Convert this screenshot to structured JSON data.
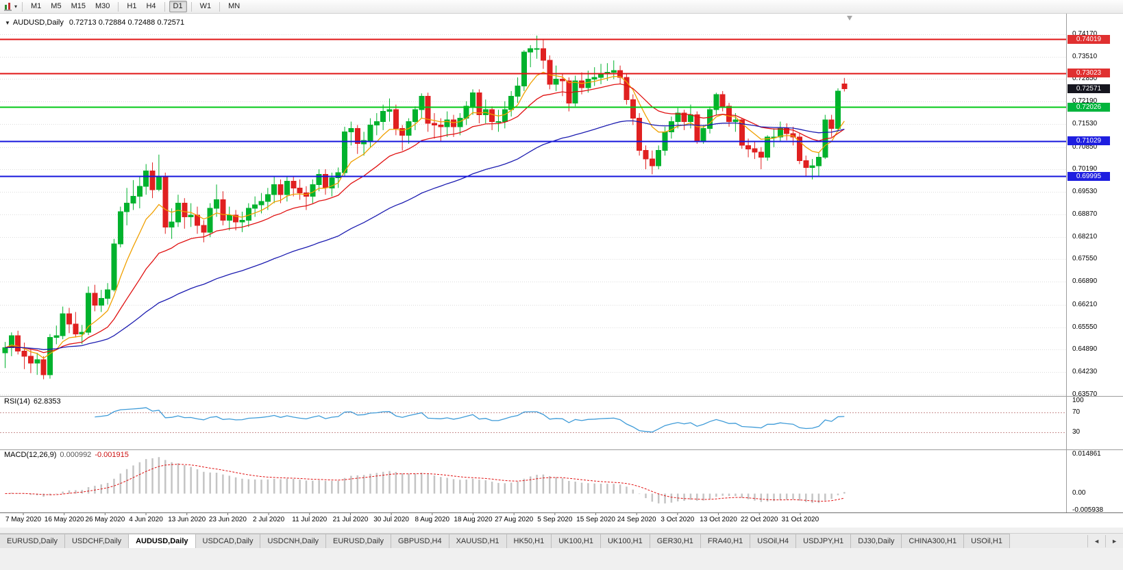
{
  "toolbar": {
    "timeframe_groups": [
      [
        "M1",
        "M5",
        "M15",
        "M30"
      ],
      [
        "H1",
        "H4"
      ],
      [
        "D1"
      ],
      [
        "W1"
      ],
      [
        "MN"
      ]
    ],
    "active_timeframe": "D1",
    "caret": "▾"
  },
  "chart": {
    "collapse_icon": "▼",
    "symbol_period": "AUDUSD,Daily",
    "ohlc": "0.72713 0.72884 0.72488 0.72571"
  },
  "price_axis": {
    "labels": [
      "0.74170",
      "0.73510",
      "0.72850",
      "0.72190",
      "0.71530",
      "0.70850",
      "0.70190",
      "0.69530",
      "0.68870",
      "0.68210",
      "0.67550",
      "0.66890",
      "0.66210",
      "0.65550",
      "0.64890",
      "0.64230",
      "0.63570"
    ]
  },
  "lines": [
    {
      "price": 0.74019,
      "label": "0.74019",
      "color": "#e01414",
      "badge": "#e03030",
      "width": 2,
      "current": false
    },
    {
      "price": 0.73023,
      "label": "0.73023",
      "color": "#e01414",
      "badge": "#e03030",
      "width": 2,
      "current": false
    },
    {
      "price": 0.72571,
      "label": "0.72571",
      "color": "#16161f",
      "badge": "#16161f",
      "width": 1,
      "current": true
    },
    {
      "price": 0.72026,
      "label": "0.72026",
      "color": "#00c814",
      "badge": "#00b43c",
      "width": 2,
      "current": false
    },
    {
      "price": 0.71029,
      "label": "0.71029",
      "color": "#1414dc",
      "badge": "#1e1ee0",
      "width": 2,
      "current": false
    },
    {
      "price": 0.69995,
      "label": "0.69995",
      "color": "#1414dc",
      "badge": "#1e1ee0",
      "width": 2,
      "current": false
    }
  ],
  "date_axis": {
    "labels": [
      "7 May 2020",
      "16 May 2020",
      "26 May 2020",
      "4 Jun 2020",
      "13 Jun 2020",
      "23 Jun 2020",
      "2 Jul 2020",
      "11 Jul 2020",
      "21 Jul 2020",
      "30 Jul 2020",
      "8 Aug 2020",
      "18 Aug 2020",
      "27 Aug 2020",
      "5 Sep 2020",
      "15 Sep 2020",
      "24 Sep 2020",
      "3 Oct 2020",
      "13 Oct 2020",
      "22 Oct 2020",
      "31 Oct 2020"
    ]
  },
  "indicators": {
    "rsi": {
      "name": "RSI(14)",
      "value": "62.8353",
      "period": 14,
      "levels": [
        70,
        30
      ],
      "axis_labels": [
        "100",
        "70",
        "30"
      ],
      "color": "#3e9bd8",
      "level_color": "#c89090"
    },
    "macd": {
      "name": "MACD(12,26,9)",
      "main_value": "0.000992",
      "signal_value": "-0.001915",
      "fast": 12,
      "slow": 26,
      "signal": 9,
      "axis_labels": [
        "0.014861",
        "0.00",
        "-0.005938"
      ],
      "axis_max": 0.014861,
      "axis_min": -0.005938,
      "hist_color": "#c4c4c4",
      "signal_color": "#e01010"
    }
  },
  "tabs": {
    "items": [
      "EURUSD,Daily",
      "USDCHF,Daily",
      "AUDUSD,Daily",
      "USDCAD,Daily",
      "USDCNH,Daily",
      "EURUSD,Daily",
      "GBPUSD,H4",
      "XAUUSD,H1",
      "HK50,H1",
      "UK100,H1",
      "UK100,H1",
      "GER30,H1",
      "FRA40,H1",
      "USOil,H4",
      "USDJPY,H1",
      "DJ30,Daily",
      "CHINA300,H1",
      "USOil,H1"
    ],
    "active_index": 2,
    "prev_icon": "◄",
    "next_icon": "►"
  },
  "chart_data": {
    "type": "candlestick",
    "symbol": "AUDUSD",
    "timeframe": "Daily",
    "up_color": "#00b22d",
    "down_color": "#e02020",
    "price_axis_top": 0.7474,
    "price_axis_bottom": 0.6353,
    "ma": [
      {
        "period": 8,
        "color": "#f0a000"
      },
      {
        "period": 20,
        "color": "#e01010"
      },
      {
        "period": 55,
        "color": "#1b1bb0"
      }
    ],
    "candles": [
      [
        0.648,
        0.6512,
        0.6435,
        0.6495
      ],
      [
        0.6495,
        0.654,
        0.647,
        0.653
      ],
      [
        0.653,
        0.6545,
        0.6475,
        0.6485
      ],
      [
        0.6485,
        0.651,
        0.6432,
        0.647
      ],
      [
        0.647,
        0.649,
        0.642,
        0.645
      ],
      [
        0.645,
        0.648,
        0.6415,
        0.646
      ],
      [
        0.646,
        0.647,
        0.6402,
        0.6415
      ],
      [
        0.6415,
        0.6535,
        0.6404,
        0.6525
      ],
      [
        0.6525,
        0.656,
        0.6505,
        0.653
      ],
      [
        0.653,
        0.6616,
        0.652,
        0.6595
      ],
      [
        0.6595,
        0.6612,
        0.6538,
        0.6565
      ],
      [
        0.6565,
        0.66,
        0.6525,
        0.6535
      ],
      [
        0.6535,
        0.6562,
        0.6505,
        0.654
      ],
      [
        0.654,
        0.6675,
        0.6532,
        0.6655
      ],
      [
        0.6655,
        0.668,
        0.6602,
        0.662
      ],
      [
        0.662,
        0.6665,
        0.66,
        0.664
      ],
      [
        0.664,
        0.6685,
        0.6622,
        0.6665
      ],
      [
        0.6665,
        0.6815,
        0.666,
        0.68
      ],
      [
        0.68,
        0.691,
        0.679,
        0.6895
      ],
      [
        0.6895,
        0.6965,
        0.6855,
        0.692
      ],
      [
        0.692,
        0.6988,
        0.69,
        0.694
      ],
      [
        0.694,
        0.7,
        0.6905,
        0.697
      ],
      [
        0.697,
        0.7035,
        0.6945,
        0.7015
      ],
      [
        0.7015,
        0.704,
        0.6935,
        0.696
      ],
      [
        0.696,
        0.7063,
        0.6955,
        0.7
      ],
      [
        0.7,
        0.701,
        0.683,
        0.685
      ],
      [
        0.685,
        0.6905,
        0.6815,
        0.6865
      ],
      [
        0.6865,
        0.6945,
        0.685,
        0.692
      ],
      [
        0.692,
        0.6935,
        0.6845,
        0.688
      ],
      [
        0.688,
        0.692,
        0.685,
        0.6885
      ],
      [
        0.6885,
        0.691,
        0.683,
        0.6855
      ],
      [
        0.6855,
        0.687,
        0.6805,
        0.6835
      ],
      [
        0.6835,
        0.692,
        0.682,
        0.6905
      ],
      [
        0.6905,
        0.6975,
        0.688,
        0.693
      ],
      [
        0.693,
        0.6955,
        0.6855,
        0.687
      ],
      [
        0.687,
        0.691,
        0.684,
        0.6885
      ],
      [
        0.6885,
        0.69,
        0.684,
        0.6865
      ],
      [
        0.6865,
        0.6895,
        0.6835,
        0.687
      ],
      [
        0.687,
        0.692,
        0.685,
        0.6905
      ],
      [
        0.6905,
        0.694,
        0.688,
        0.6915
      ],
      [
        0.6915,
        0.695,
        0.689,
        0.6925
      ],
      [
        0.6925,
        0.6965,
        0.69,
        0.6945
      ],
      [
        0.6945,
        0.6998,
        0.692,
        0.6975
      ],
      [
        0.6975,
        0.699,
        0.692,
        0.6945
      ],
      [
        0.6945,
        0.7,
        0.6925,
        0.6985
      ],
      [
        0.6985,
        0.7,
        0.694,
        0.6965
      ],
      [
        0.6965,
        0.699,
        0.693,
        0.695
      ],
      [
        0.695,
        0.697,
        0.69,
        0.694
      ],
      [
        0.694,
        0.699,
        0.692,
        0.6975
      ],
      [
        0.6975,
        0.702,
        0.6955,
        0.7005
      ],
      [
        0.7005,
        0.702,
        0.6945,
        0.6965
      ],
      [
        0.6965,
        0.701,
        0.694,
        0.6995
      ],
      [
        0.6995,
        0.7025,
        0.6965,
        0.701
      ],
      [
        0.701,
        0.7145,
        0.7,
        0.713
      ],
      [
        0.713,
        0.716,
        0.709,
        0.714
      ],
      [
        0.714,
        0.715,
        0.7065,
        0.7095
      ],
      [
        0.7095,
        0.713,
        0.706,
        0.7105
      ],
      [
        0.7105,
        0.717,
        0.7085,
        0.715
      ],
      [
        0.715,
        0.7185,
        0.712,
        0.716
      ],
      [
        0.716,
        0.721,
        0.7135,
        0.719
      ],
      [
        0.719,
        0.7228,
        0.716,
        0.7195
      ],
      [
        0.7195,
        0.721,
        0.712,
        0.714
      ],
      [
        0.714,
        0.715,
        0.7075,
        0.712
      ],
      [
        0.712,
        0.717,
        0.7095,
        0.716
      ],
      [
        0.716,
        0.7205,
        0.7135,
        0.7195
      ],
      [
        0.7195,
        0.7243,
        0.717,
        0.7235
      ],
      [
        0.7235,
        0.7245,
        0.713,
        0.7155
      ],
      [
        0.7155,
        0.7185,
        0.711,
        0.715
      ],
      [
        0.715,
        0.717,
        0.71,
        0.7145
      ],
      [
        0.7145,
        0.719,
        0.7115,
        0.7165
      ],
      [
        0.7165,
        0.718,
        0.7115,
        0.7145
      ],
      [
        0.7145,
        0.7185,
        0.712,
        0.717
      ],
      [
        0.717,
        0.722,
        0.715,
        0.7205
      ],
      [
        0.7205,
        0.7255,
        0.718,
        0.7245
      ],
      [
        0.7245,
        0.7255,
        0.7155,
        0.718
      ],
      [
        0.718,
        0.7225,
        0.7155,
        0.7195
      ],
      [
        0.7195,
        0.7205,
        0.7135,
        0.716
      ],
      [
        0.716,
        0.7195,
        0.713,
        0.716
      ],
      [
        0.716,
        0.722,
        0.714,
        0.7195
      ],
      [
        0.7195,
        0.725,
        0.7175,
        0.7235
      ],
      [
        0.7235,
        0.729,
        0.7215,
        0.7265
      ],
      [
        0.7265,
        0.737,
        0.725,
        0.7365
      ],
      [
        0.7365,
        0.7385,
        0.732,
        0.7375
      ],
      [
        0.7375,
        0.7413,
        0.7345,
        0.7375
      ],
      [
        0.7375,
        0.74,
        0.7315,
        0.734
      ],
      [
        0.734,
        0.7355,
        0.7255,
        0.727
      ],
      [
        0.727,
        0.7325,
        0.725,
        0.7285
      ],
      [
        0.7285,
        0.73,
        0.7235,
        0.728
      ],
      [
        0.728,
        0.729,
        0.719,
        0.7215
      ],
      [
        0.7215,
        0.7295,
        0.7205,
        0.728
      ],
      [
        0.728,
        0.7305,
        0.724,
        0.726
      ],
      [
        0.726,
        0.731,
        0.7245,
        0.7285
      ],
      [
        0.7285,
        0.732,
        0.7265,
        0.729
      ],
      [
        0.729,
        0.733,
        0.727,
        0.73
      ],
      [
        0.73,
        0.7332,
        0.728,
        0.7305
      ],
      [
        0.7305,
        0.734,
        0.7285,
        0.731
      ],
      [
        0.731,
        0.7325,
        0.727,
        0.729
      ],
      [
        0.729,
        0.73,
        0.721,
        0.7225
      ],
      [
        0.7225,
        0.724,
        0.715,
        0.717
      ],
      [
        0.717,
        0.7185,
        0.706,
        0.7075
      ],
      [
        0.7075,
        0.709,
        0.702,
        0.705
      ],
      [
        0.705,
        0.7075,
        0.7005,
        0.703
      ],
      [
        0.703,
        0.709,
        0.702,
        0.7075
      ],
      [
        0.7075,
        0.7145,
        0.706,
        0.713
      ],
      [
        0.713,
        0.7175,
        0.711,
        0.716
      ],
      [
        0.716,
        0.72,
        0.714,
        0.7185
      ],
      [
        0.7185,
        0.7195,
        0.7135,
        0.716
      ],
      [
        0.716,
        0.721,
        0.714,
        0.718
      ],
      [
        0.718,
        0.719,
        0.7095,
        0.7105
      ],
      [
        0.7105,
        0.715,
        0.7095,
        0.714
      ],
      [
        0.714,
        0.7205,
        0.7125,
        0.7195
      ],
      [
        0.7195,
        0.7245,
        0.718,
        0.724
      ],
      [
        0.724,
        0.725,
        0.719,
        0.7205
      ],
      [
        0.7205,
        0.7215,
        0.7145,
        0.716
      ],
      [
        0.716,
        0.7185,
        0.713,
        0.7165
      ],
      [
        0.7165,
        0.717,
        0.708,
        0.709
      ],
      [
        0.709,
        0.711,
        0.7055,
        0.708
      ],
      [
        0.708,
        0.71,
        0.705,
        0.707
      ],
      [
        0.707,
        0.7085,
        0.702,
        0.7055
      ],
      [
        0.7055,
        0.712,
        0.7045,
        0.7115
      ],
      [
        0.7115,
        0.714,
        0.7085,
        0.7115
      ],
      [
        0.7115,
        0.716,
        0.71,
        0.714
      ],
      [
        0.714,
        0.7155,
        0.7105,
        0.7125
      ],
      [
        0.7125,
        0.7145,
        0.709,
        0.7115
      ],
      [
        0.7115,
        0.7125,
        0.7035,
        0.7045
      ],
      [
        0.7045,
        0.706,
        0.7,
        0.7025
      ],
      [
        0.7025,
        0.705,
        0.699,
        0.703
      ],
      [
        0.703,
        0.707,
        0.7,
        0.7055
      ],
      [
        0.7055,
        0.718,
        0.705,
        0.7165
      ],
      [
        0.7165,
        0.718,
        0.7115,
        0.714
      ],
      [
        0.714,
        0.7258,
        0.713,
        0.725
      ],
      [
        0.72713,
        0.72884,
        0.72488,
        0.72571
      ]
    ]
  }
}
